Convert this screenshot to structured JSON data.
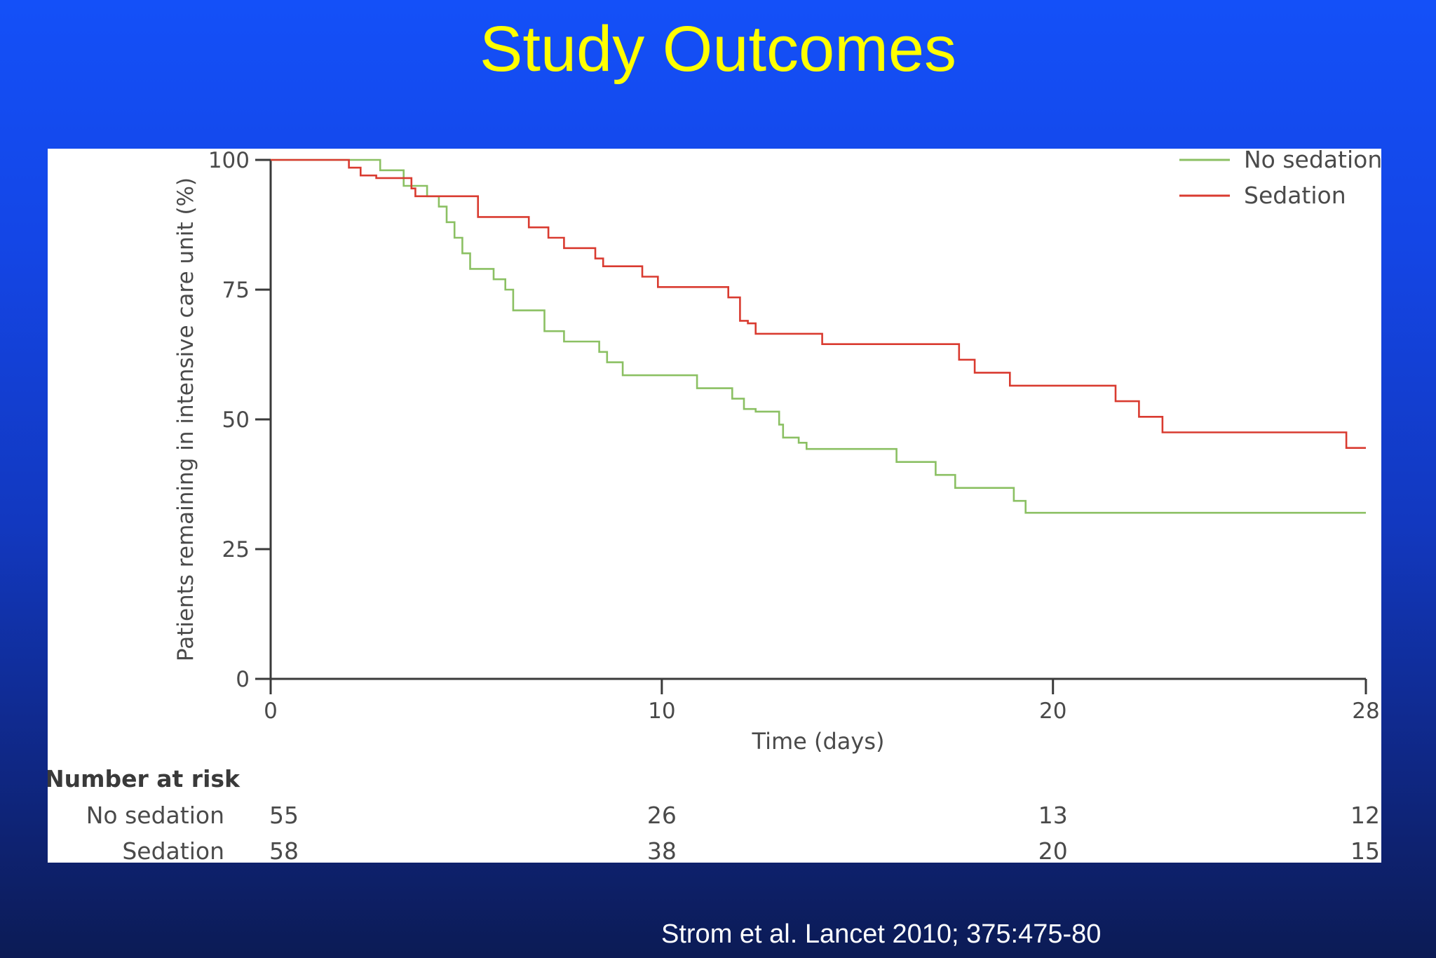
{
  "slide": {
    "title": "Study Outcomes",
    "citation": "Strom et al. Lancet 2010; 375:475-80"
  },
  "chart_data": {
    "type": "line",
    "subtype": "kaplan-meier step",
    "title": "",
    "xlabel": "Time (days)",
    "ylabel": "Patients remaining in intensive care unit (%)",
    "xlim": [
      0,
      28
    ],
    "ylim": [
      0,
      100
    ],
    "x_ticks": [
      0,
      10,
      20,
      28
    ],
    "y_ticks": [
      0,
      25,
      50,
      75,
      100
    ],
    "legend": [
      "No sedation",
      "Sedation"
    ],
    "legend_position": "top-right",
    "series": [
      {
        "name": "No sedation",
        "color": "#8bc063",
        "points": [
          [
            0,
            100
          ],
          [
            2.8,
            100
          ],
          [
            2.8,
            98
          ],
          [
            3.4,
            98
          ],
          [
            3.4,
            95
          ],
          [
            4.0,
            95
          ],
          [
            4.0,
            93
          ],
          [
            4.3,
            93
          ],
          [
            4.3,
            91
          ],
          [
            4.5,
            91
          ],
          [
            4.5,
            88
          ],
          [
            4.7,
            88
          ],
          [
            4.7,
            85
          ],
          [
            4.9,
            85
          ],
          [
            4.9,
            82
          ],
          [
            5.1,
            82
          ],
          [
            5.1,
            79
          ],
          [
            5.7,
            79
          ],
          [
            5.7,
            77
          ],
          [
            6.0,
            77
          ],
          [
            6.0,
            75
          ],
          [
            6.2,
            75
          ],
          [
            6.2,
            71
          ],
          [
            7.0,
            71
          ],
          [
            7.0,
            67
          ],
          [
            7.5,
            67
          ],
          [
            7.5,
            65
          ],
          [
            8.4,
            65
          ],
          [
            8.4,
            63
          ],
          [
            8.6,
            63
          ],
          [
            8.6,
            61
          ],
          [
            9.0,
            61
          ],
          [
            9.0,
            58.5
          ],
          [
            10.9,
            58.5
          ],
          [
            10.9,
            56
          ],
          [
            11.8,
            56
          ],
          [
            11.8,
            54
          ],
          [
            12.1,
            54
          ],
          [
            12.1,
            52
          ],
          [
            12.4,
            52
          ],
          [
            12.4,
            51.5
          ],
          [
            13.0,
            51.5
          ],
          [
            13.0,
            49
          ],
          [
            13.1,
            49
          ],
          [
            13.1,
            46.5
          ],
          [
            13.5,
            46.5
          ],
          [
            13.5,
            45.5
          ],
          [
            13.7,
            45.5
          ],
          [
            13.7,
            44.3
          ],
          [
            16.0,
            44.3
          ],
          [
            16.0,
            41.8
          ],
          [
            17.0,
            41.8
          ],
          [
            17.0,
            39.3
          ],
          [
            17.5,
            39.3
          ],
          [
            17.5,
            36.8
          ],
          [
            19.0,
            36.8
          ],
          [
            19.0,
            34.3
          ],
          [
            19.3,
            34.3
          ],
          [
            19.3,
            32
          ],
          [
            28.0,
            32
          ]
        ]
      },
      {
        "name": "Sedation",
        "color": "#d93b30",
        "points": [
          [
            0,
            100
          ],
          [
            2.0,
            100
          ],
          [
            2.0,
            98.5
          ],
          [
            2.3,
            98.5
          ],
          [
            2.3,
            97
          ],
          [
            2.7,
            97
          ],
          [
            2.7,
            96.5
          ],
          [
            3.6,
            96.5
          ],
          [
            3.6,
            94.5
          ],
          [
            3.7,
            94.5
          ],
          [
            3.7,
            93
          ],
          [
            5.3,
            93
          ],
          [
            5.3,
            89
          ],
          [
            6.6,
            89
          ],
          [
            6.6,
            87
          ],
          [
            7.1,
            87
          ],
          [
            7.1,
            85
          ],
          [
            7.5,
            85
          ],
          [
            7.5,
            83
          ],
          [
            8.3,
            83
          ],
          [
            8.3,
            81
          ],
          [
            8.5,
            81
          ],
          [
            8.5,
            79.5
          ],
          [
            9.5,
            79.5
          ],
          [
            9.5,
            77.5
          ],
          [
            9.9,
            77.5
          ],
          [
            9.9,
            75.5
          ],
          [
            11.7,
            75.5
          ],
          [
            11.7,
            73.5
          ],
          [
            12.0,
            73.5
          ],
          [
            12.0,
            69
          ],
          [
            12.2,
            69
          ],
          [
            12.2,
            68.5
          ],
          [
            12.4,
            68.5
          ],
          [
            12.4,
            66.5
          ],
          [
            14.1,
            66.5
          ],
          [
            14.1,
            64.5
          ],
          [
            17.6,
            64.5
          ],
          [
            17.6,
            61.5
          ],
          [
            18.0,
            61.5
          ],
          [
            18.0,
            59
          ],
          [
            18.9,
            59
          ],
          [
            18.9,
            56.5
          ],
          [
            21.6,
            56.5
          ],
          [
            21.6,
            53.5
          ],
          [
            22.2,
            53.5
          ],
          [
            22.2,
            50.5
          ],
          [
            22.8,
            50.5
          ],
          [
            22.8,
            47.5
          ],
          [
            27.5,
            47.5
          ],
          [
            27.5,
            44.5
          ],
          [
            28.0,
            44.5
          ]
        ]
      }
    ],
    "number_at_risk": {
      "heading": "Number at risk",
      "times": [
        0,
        10,
        20,
        28
      ],
      "rows": [
        {
          "label": "No sedation",
          "values": [
            "55",
            "26",
            "13",
            "12"
          ]
        },
        {
          "label": "Sedation",
          "values": [
            "58",
            "38",
            "20",
            "15"
          ]
        }
      ]
    }
  }
}
